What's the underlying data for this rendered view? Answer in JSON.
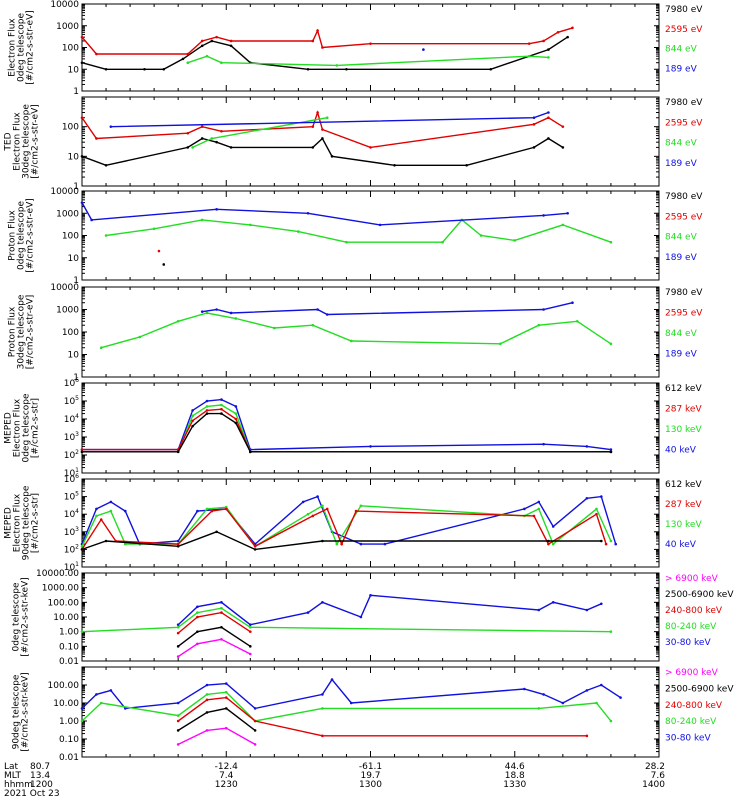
{
  "colors": {
    "black": "#000000",
    "red": "#e00000",
    "green": "#22dd22",
    "blue": "#1010e0",
    "magenta": "#ff00ff"
  },
  "footer": {
    "rows": [
      {
        "label": "Lat",
        "values": [
          "80.7",
          "-12.4",
          "-61.1",
          "44.6",
          "28.2"
        ]
      },
      {
        "label": "MLT",
        "values": [
          "13.4",
          "7.4",
          "19.7",
          "18.8",
          "7.6"
        ]
      },
      {
        "label": "hhmm",
        "values": [
          "1200",
          "1230",
          "1300",
          "1330",
          "1400"
        ]
      }
    ],
    "date": "2021 Oct 23"
  },
  "chart_data": [
    {
      "type": "line",
      "ylabel": [
        "Electron Flux",
        "0deg telescope",
        "[#/cm2-s-str-eV]"
      ],
      "yscale": "log",
      "ylim": [
        1,
        10000
      ],
      "yticks": [
        "1",
        "10",
        "100",
        "1000",
        "10000"
      ],
      "legend": [
        {
          "label": "7980 eV",
          "color": "black"
        },
        {
          "label": "2595 eV",
          "color": "red"
        },
        {
          "label": "844 eV",
          "color": "green"
        },
        {
          "label": "189 eV",
          "color": "blue"
        }
      ],
      "series": [
        {
          "color": "black",
          "x": [
            1200,
            1205,
            1213,
            1217,
            1221,
            1225,
            1227,
            1231,
            1235,
            1247,
            1255,
            1325,
            1337,
            1341
          ],
          "y": [
            20,
            10,
            10,
            10,
            30,
            120,
            200,
            120,
            20,
            10,
            10,
            10,
            80,
            300
          ]
        },
        {
          "color": "red",
          "x": [
            1200,
            1203,
            1222,
            1225,
            1228,
            1231,
            1248,
            1249,
            1250,
            1300,
            1333,
            1336,
            1339,
            1342
          ],
          "y": [
            300,
            50,
            50,
            200,
            300,
            200,
            200,
            600,
            100,
            150,
            150,
            200,
            500,
            800
          ]
        },
        {
          "color": "green",
          "x": [
            1222,
            1226,
            1229,
            1253,
            1333,
            1337
          ],
          "y": [
            20,
            40,
            20,
            15,
            40,
            35
          ]
        },
        {
          "color": "blue",
          "x": [
            1311
          ],
          "y": [
            80
          ]
        }
      ]
    },
    {
      "type": "line",
      "ylabel": [
        "TED",
        "Electron Flux",
        "30deg telescope",
        "[#/cm2-s-str-eV]"
      ],
      "yscale": "log",
      "ylim": [
        1,
        1000
      ],
      "yticks": [
        "1",
        "10",
        "100"
      ],
      "legend": [
        {
          "label": "7980 eV",
          "color": "black"
        },
        {
          "label": "2595 eV",
          "color": "red"
        },
        {
          "label": "844 eV",
          "color": "green"
        },
        {
          "label": "189 eV",
          "color": "blue"
        }
      ],
      "series": [
        {
          "color": "black",
          "x": [
            1200,
            1205,
            1222,
            1225,
            1228,
            1231,
            1248,
            1250,
            1252,
            1305,
            1320,
            1334,
            1337,
            1340
          ],
          "y": [
            10,
            5,
            20,
            40,
            30,
            20,
            20,
            40,
            10,
            5,
            5,
            20,
            40,
            20
          ]
        },
        {
          "color": "red",
          "x": [
            1200,
            1203,
            1222,
            1225,
            1229,
            1248,
            1249,
            1250,
            1300,
            1334,
            1337,
            1340
          ],
          "y": [
            200,
            40,
            60,
            100,
            70,
            100,
            300,
            80,
            20,
            120,
            200,
            100
          ]
        },
        {
          "color": "green",
          "x": [
            1223,
            1227,
            1251
          ],
          "y": [
            20,
            40,
            200
          ]
        },
        {
          "color": "blue",
          "x": [
            1206,
            1334,
            1337
          ],
          "y": [
            100,
            200,
            300
          ]
        }
      ]
    },
    {
      "type": "line",
      "ylabel": [
        "Proton Flux",
        "0deg telescope",
        "[#/cm2-s-str-eV]"
      ],
      "yscale": "log",
      "ylim": [
        1,
        10000
      ],
      "yticks": [
        "1",
        "10",
        "100",
        "1000",
        "10000"
      ],
      "legend": [
        {
          "label": "7980 eV",
          "color": "black"
        },
        {
          "label": "2595 eV",
          "color": "red"
        },
        {
          "label": "844 eV",
          "color": "green"
        },
        {
          "label": "189 eV",
          "color": "blue"
        }
      ],
      "series": [
        {
          "color": "black",
          "x": [
            1217
          ],
          "y": [
            5
          ]
        },
        {
          "color": "red",
          "x": [
            1216
          ],
          "y": [
            20
          ]
        },
        {
          "color": "green",
          "x": [
            1205,
            1215,
            1225,
            1235,
            1245,
            1255,
            1315,
            1319,
            1323,
            1330,
            1340,
            1350
          ],
          "y": [
            100,
            200,
            500,
            300,
            150,
            50,
            50,
            500,
            100,
            60,
            300,
            50
          ]
        },
        {
          "color": "blue",
          "x": [
            1200,
            1202,
            1228,
            1247,
            1302,
            1336,
            1341
          ],
          "y": [
            3000,
            500,
            1500,
            1000,
            300,
            800,
            1000
          ]
        }
      ]
    },
    {
      "type": "line",
      "ylabel": [
        "Proton Flux",
        "30deg telescope",
        "[#/cm2-s-str-eV]"
      ],
      "yscale": "log",
      "ylim": [
        1,
        10000
      ],
      "yticks": [
        "1",
        "10",
        "100",
        "1000",
        "10000"
      ],
      "legend": [
        {
          "label": "7980 eV",
          "color": "black"
        },
        {
          "label": "2595 eV",
          "color": "red"
        },
        {
          "label": "844 eV",
          "color": "green"
        },
        {
          "label": "189 eV",
          "color": "blue"
        }
      ],
      "series": [
        {
          "color": "green",
          "x": [
            1204,
            1212,
            1220,
            1226,
            1232,
            1240,
            1248,
            1256,
            1327,
            1335,
            1343,
            1350
          ],
          "y": [
            20,
            60,
            300,
            700,
            400,
            150,
            200,
            40,
            30,
            200,
            300,
            30
          ]
        },
        {
          "color": "blue",
          "x": [
            1225,
            1228,
            1231,
            1249,
            1251,
            1336,
            1342
          ],
          "y": [
            800,
            1000,
            700,
            1000,
            600,
            1000,
            2000
          ]
        }
      ]
    },
    {
      "type": "line",
      "ylabel": [
        "MEPED",
        "Electron Flux",
        "0deg telescope",
        "[#/cm2-s-str]"
      ],
      "yscale": "log",
      "ylim": [
        10,
        1000000
      ],
      "yticks": [
        "10^1",
        "10^2",
        "10^3",
        "10^4",
        "10^5",
        "10^6"
      ],
      "legend": [
        {
          "label": "612 keV",
          "color": "black"
        },
        {
          "label": "287 keV",
          "color": "red"
        },
        {
          "label": "130 keV",
          "color": "green"
        },
        {
          "label": "40 keV",
          "color": "blue"
        }
      ],
      "series": [
        {
          "color": "blue",
          "x": [
            1200,
            1220,
            1223,
            1226,
            1229,
            1232,
            1235,
            1300,
            1336,
            1345,
            1350
          ],
          "y": [
            200,
            200,
            30000,
            100000,
            120000,
            50000,
            200,
            300,
            400,
            300,
            200
          ]
        },
        {
          "color": "green",
          "x": [
            1200,
            1220,
            1223,
            1226,
            1229,
            1232,
            1235,
            1350
          ],
          "y": [
            150,
            150,
            15000,
            50000,
            60000,
            20000,
            150,
            150
          ]
        },
        {
          "color": "red",
          "x": [
            1200,
            1220,
            1223,
            1226,
            1229,
            1232,
            1235,
            1350
          ],
          "y": [
            200,
            200,
            8000,
            30000,
            35000,
            10000,
            150,
            150
          ]
        },
        {
          "color": "black",
          "x": [
            1200,
            1220,
            1223,
            1226,
            1229,
            1232,
            1235,
            1350
          ],
          "y": [
            150,
            150,
            4000,
            20000,
            20000,
            6000,
            150,
            150
          ]
        }
      ]
    },
    {
      "type": "line",
      "ylabel": [
        "MEPED",
        "Electron Flux",
        "90deg telescope",
        "[#/cm2-s-str]"
      ],
      "yscale": "log",
      "ylim": [
        10,
        1000000
      ],
      "yticks": [
        "10^1",
        "10^2",
        "10^3",
        "10^4",
        "10^5",
        "10^6"
      ],
      "legend": [
        {
          "label": "612 keV",
          "color": "black"
        },
        {
          "label": "287 keV",
          "color": "red"
        },
        {
          "label": "130 keV",
          "color": "green"
        },
        {
          "label": "40 keV",
          "color": "blue"
        }
      ],
      "series": [
        {
          "color": "blue",
          "x": [
            1200,
            1203,
            1206,
            1209,
            1212,
            1220,
            1224,
            1230,
            1236,
            1246,
            1249,
            1252,
            1258,
            1303,
            1332,
            1335,
            1338,
            1345,
            1348,
            1351
          ],
          "y": [
            200,
            20000,
            50000,
            15000,
            200,
            300,
            15000,
            20000,
            200,
            50000,
            100000,
            1000,
            200,
            200,
            20000,
            50000,
            2000,
            80000,
            100000,
            200
          ]
        },
        {
          "color": "green",
          "x": [
            1200,
            1203,
            1206,
            1209,
            1220,
            1226,
            1230,
            1236,
            1247,
            1250,
            1253,
            1258,
            1332,
            1335,
            1338,
            1347,
            1350
          ],
          "y": [
            150,
            8000,
            15000,
            200,
            200,
            20000,
            25000,
            150,
            10000,
            30000,
            200,
            30000,
            8000,
            20000,
            200,
            20000,
            300
          ]
        },
        {
          "color": "red",
          "x": [
            1200,
            1204,
            1207,
            1220,
            1227,
            1230,
            1236,
            1248,
            1251,
            1254,
            1257,
            1334,
            1337,
            1347,
            1349
          ],
          "y": [
            100,
            5000,
            300,
            200,
            15000,
            20000,
            150,
            8000,
            20000,
            200,
            15000,
            8000,
            200,
            10000,
            200
          ]
        },
        {
          "color": "black",
          "x": [
            1200,
            1205,
            1220,
            1228,
            1236,
            1250,
            1337,
            1348
          ],
          "y": [
            100,
            300,
            150,
            1000,
            100,
            300,
            300,
            300
          ]
        }
      ]
    },
    {
      "type": "line",
      "ylabel": [
        "0deg telescope",
        "[#/cm2-s-str-keV]"
      ],
      "yscale": "log",
      "ylim": [
        0.01,
        10000
      ],
      "yticks": [
        "0.01",
        "0.10",
        "1.00",
        "10.00",
        "100.00",
        "1000.00",
        "10000.00"
      ],
      "legend": [
        {
          "label": "> 6900 keV",
          "color": "magenta"
        },
        {
          "label": "2500-6900 keV",
          "color": "black"
        },
        {
          "label": "240-800 keV",
          "color": "red"
        },
        {
          "label": "80-240 keV",
          "color": "green"
        },
        {
          "label": "30-80 keV",
          "color": "blue"
        }
      ],
      "series": [
        {
          "color": "blue",
          "x": [
            1220,
            1224,
            1229,
            1235,
            1247,
            1250,
            1258,
            1300,
            1335,
            1338,
            1345,
            1348
          ],
          "y": [
            3,
            50,
            100,
            3,
            20,
            100,
            10,
            300,
            30,
            100,
            30,
            80
          ]
        },
        {
          "color": "green",
          "x": [
            1200,
            1220,
            1224,
            1229,
            1235,
            1350
          ],
          "y": [
            1,
            2,
            20,
            40,
            2,
            1
          ]
        },
        {
          "color": "red",
          "x": [
            1220,
            1224,
            1229,
            1235
          ],
          "y": [
            0.8,
            10,
            20,
            1
          ]
        },
        {
          "color": "black",
          "x": [
            1220,
            1224,
            1229,
            1235
          ],
          "y": [
            0.1,
            1,
            2,
            0.1
          ]
        },
        {
          "color": "magenta",
          "x": [
            1220,
            1224,
            1229,
            1235
          ],
          "y": [
            0.02,
            0.15,
            0.3,
            0.03
          ]
        }
      ]
    },
    {
      "type": "line",
      "ylabel": [
        "90deg telescope",
        "[#/cm2-s-str-keV]"
      ],
      "yscale": "log",
      "ylim": [
        0.01,
        1000
      ],
      "yticks": [
        "0.01",
        "0.10",
        "1.00",
        "10.00",
        "100.00"
      ],
      "legend": [
        {
          "label": "> 6900 keV",
          "color": "magenta"
        },
        {
          "label": "2500-6900 keV",
          "color": "black"
        },
        {
          "label": "240-800 keV",
          "color": "red"
        },
        {
          "label": "80-240 keV",
          "color": "green"
        },
        {
          "label": "30-80 keV",
          "color": "blue"
        }
      ],
      "series": [
        {
          "color": "blue",
          "x": [
            1200,
            1203,
            1206,
            1209,
            1220,
            1226,
            1230,
            1236,
            1250,
            1252,
            1256,
            1332,
            1336,
            1340,
            1345,
            1348,
            1352
          ],
          "y": [
            5,
            30,
            50,
            5,
            10,
            100,
            120,
            5,
            30,
            200,
            10,
            60,
            30,
            10,
            50,
            100,
            20
          ]
        },
        {
          "color": "green",
          "x": [
            1200,
            1204,
            1220,
            1226,
            1230,
            1236,
            1250,
            1335,
            1347,
            1350
          ],
          "y": [
            1,
            10,
            2,
            30,
            40,
            1,
            5,
            5,
            10,
            1
          ]
        },
        {
          "color": "red",
          "x": [
            1220,
            1226,
            1230,
            1236,
            1250,
            1345
          ],
          "y": [
            1,
            15,
            20,
            1,
            0.15,
            0.15
          ]
        },
        {
          "color": "black",
          "x": [
            1220,
            1226,
            1230,
            1236
          ],
          "y": [
            0.3,
            3,
            5,
            0.3
          ]
        },
        {
          "color": "magenta",
          "x": [
            1220,
            1226,
            1230,
            1236
          ],
          "y": [
            0.05,
            0.3,
            0.4,
            0.05
          ]
        }
      ]
    }
  ]
}
